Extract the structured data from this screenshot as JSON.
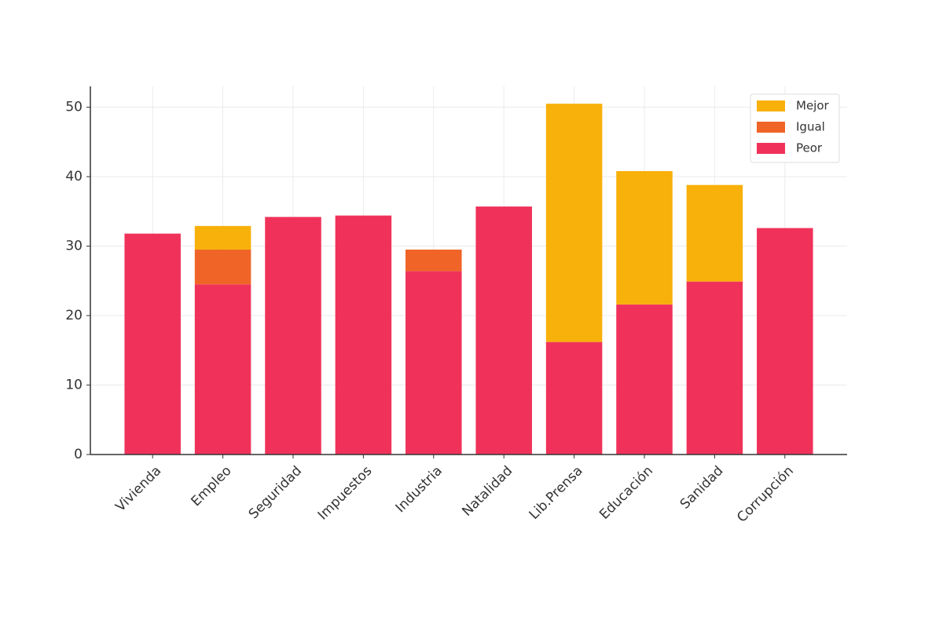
{
  "chart_data": {
    "type": "stacked_bar",
    "categories": [
      "Vivienda",
      "Empleo",
      "Seguridad",
      "Impuestos",
      "Industria",
      "Natalidad",
      "Lib.Prensa",
      "Educación",
      "Sanidad",
      "Corrupción"
    ],
    "series": [
      {
        "name": "Peor",
        "color": "#f0325a",
        "values": [
          31.8,
          24.5,
          34.2,
          34.4,
          26.4,
          35.7,
          16.2,
          21.6,
          24.9,
          32.6
        ]
      },
      {
        "name": "Igual",
        "color": "#f06428",
        "values": [
          0,
          5.0,
          0,
          0,
          3.1,
          0,
          0,
          0,
          0,
          0
        ]
      },
      {
        "name": "Mejor",
        "color": "#f8b00a",
        "values": [
          0,
          3.4,
          0,
          0,
          0,
          0,
          34.3,
          19.2,
          13.9,
          0
        ]
      }
    ],
    "ylim": [
      0,
      53
    ],
    "yticks": [
      0,
      10,
      20,
      30,
      40,
      50
    ],
    "grid": true,
    "legend": "upper right"
  }
}
